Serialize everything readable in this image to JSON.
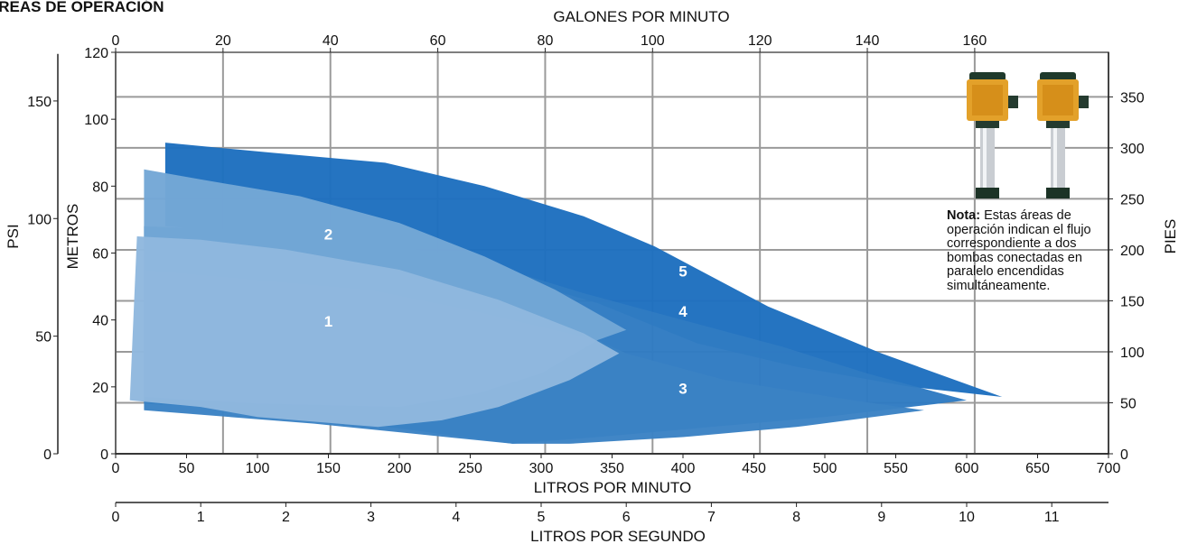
{
  "title": "ÁREAS DE OPERACIÓN",
  "note": {
    "label": "Nota:",
    "text": "Estas áreas de operación indican el flujo correspondiente a dos bombas conectadas en paralelo encendidas simultáneamente."
  },
  "colors": {
    "grid": "#9a9a9a",
    "area_1": "#8fb8de",
    "area_2": "#74a7d6",
    "area_3": "#3b82c4",
    "area_4": "#2f7bc2",
    "area_5": "#1e6fbf"
  },
  "icons": [
    "pump-icon",
    "pump-icon"
  ],
  "chart_data": {
    "type": "area",
    "title": "ÁREAS DE OPERACIÓN",
    "grid": true,
    "axes": {
      "bottom": {
        "label": "LITROS POR MINUTO",
        "range": [
          0,
          700
        ],
        "ticks": [
          "0",
          "50",
          "100",
          "150",
          "200",
          "250",
          "300",
          "350",
          "400",
          "450",
          "500",
          "550",
          "600",
          "650",
          "700"
        ]
      },
      "top": {
        "label": "GALONES POR MINUTO",
        "ticks": [
          "0",
          "20",
          "40",
          "60",
          "80",
          "100",
          "120",
          "140",
          "160"
        ]
      },
      "lps": {
        "label": "LITROS POR SEGUNDO",
        "ticks": [
          "0",
          "1",
          "2",
          "3",
          "4",
          "5",
          "6",
          "7",
          "8",
          "9",
          "10",
          "11"
        ]
      },
      "left_meters": {
        "label": "METROS",
        "range": [
          0,
          120
        ],
        "ticks": [
          "0",
          "20",
          "40",
          "60",
          "80",
          "100",
          "120"
        ]
      },
      "left_psi": {
        "label": "PSI",
        "ticks": [
          "0",
          "50",
          "100",
          "150"
        ]
      },
      "right_feet": {
        "label": "PIES",
        "ticks": [
          "0",
          "50",
          "100",
          "150",
          "200",
          "250",
          "300",
          "350"
        ]
      }
    },
    "series": [
      {
        "name": "1",
        "points": [
          [
            10,
            16
          ],
          [
            15,
            65
          ],
          [
            60,
            64
          ],
          [
            120,
            61
          ],
          [
            200,
            55
          ],
          [
            270,
            46
          ],
          [
            330,
            36
          ],
          [
            355,
            30
          ],
          [
            320,
            22
          ],
          [
            270,
            14
          ],
          [
            230,
            10
          ],
          [
            185,
            8
          ],
          [
            100,
            11
          ],
          [
            60,
            14
          ],
          [
            10,
            16
          ]
        ]
      },
      {
        "name": "2",
        "points": [
          [
            20,
            85
          ],
          [
            60,
            82
          ],
          [
            130,
            77
          ],
          [
            200,
            69
          ],
          [
            260,
            59
          ],
          [
            310,
            49
          ],
          [
            360,
            37
          ],
          [
            340,
            34
          ],
          [
            300,
            24
          ],
          [
            255,
            18
          ],
          [
            200,
            14
          ],
          [
            100,
            15
          ],
          [
            60,
            16
          ],
          [
            20,
            17
          ]
        ]
      },
      {
        "name": "3",
        "points": [
          [
            20,
            13
          ],
          [
            140,
            9
          ],
          [
            210,
            6
          ],
          [
            280,
            3
          ],
          [
            320,
            3
          ],
          [
            400,
            5
          ],
          [
            480,
            8
          ],
          [
            570,
            13
          ],
          [
            520,
            16
          ],
          [
            430,
            22
          ],
          [
            360,
            30
          ],
          [
            340,
            34
          ],
          [
            300,
            38
          ],
          [
            250,
            43
          ],
          [
            180,
            49
          ],
          [
            100,
            52
          ],
          [
            20,
            55
          ]
        ]
      },
      {
        "name": "4",
        "points": [
          [
            20,
            15
          ],
          [
            100,
            13
          ],
          [
            210,
            7
          ],
          [
            280,
            3
          ],
          [
            340,
            5
          ],
          [
            420,
            8
          ],
          [
            500,
            11
          ],
          [
            600,
            16
          ],
          [
            530,
            24
          ],
          [
            470,
            32
          ],
          [
            400,
            40
          ],
          [
            330,
            48
          ],
          [
            260,
            57
          ],
          [
            150,
            66
          ],
          [
            20,
            68
          ]
        ]
      },
      {
        "name": "5",
        "points": [
          [
            35,
            93
          ],
          [
            110,
            90
          ],
          [
            190,
            87
          ],
          [
            260,
            80
          ],
          [
            330,
            71
          ],
          [
            380,
            62
          ],
          [
            460,
            44
          ],
          [
            540,
            30
          ],
          [
            625,
            17
          ],
          [
            560,
            20
          ],
          [
            480,
            26
          ],
          [
            410,
            33
          ],
          [
            340,
            45
          ],
          [
            250,
            56
          ],
          [
            120,
            65
          ],
          [
            35,
            68
          ]
        ]
      }
    ]
  }
}
